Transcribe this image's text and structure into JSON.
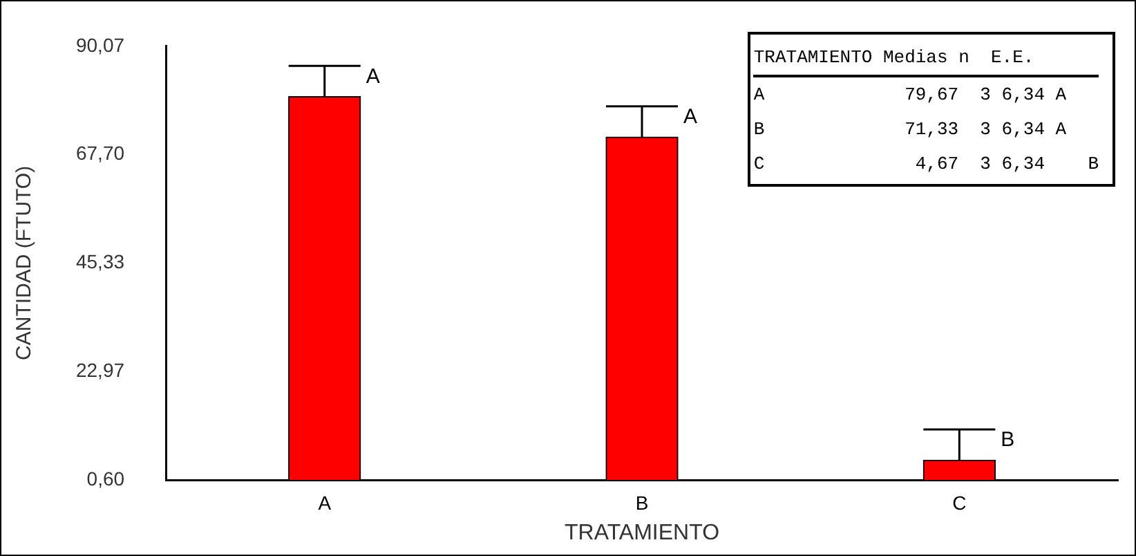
{
  "chart_data": {
    "type": "bar",
    "xlabel": "TRATAMIENTO",
    "ylabel": "CANTIDAD (FTUTO)",
    "categories": [
      "A",
      "B",
      "C"
    ],
    "values": [
      79.67,
      71.33,
      4.67
    ],
    "errors": [
      [
        79.67,
        86.01
      ],
      [
        71.33,
        77.67
      ],
      [
        4.67,
        11.01
      ]
    ],
    "color": "#ff0000",
    "ylim": [
      0.6,
      90.07
    ],
    "yticks": [
      {
        "value": 0.6,
        "label": "0,60"
      },
      {
        "value": 22.97,
        "label": "22,97"
      },
      {
        "value": 45.33,
        "label": "45,33"
      },
      {
        "value": 67.7,
        "label": "67,70"
      },
      {
        "value": 90.07,
        "label": "90,07"
      }
    ],
    "grid": false,
    "annotations": [
      {
        "text": "A",
        "x": "A",
        "y": 86.01
      },
      {
        "text": "A",
        "x": "B",
        "y": 77.67
      },
      {
        "text": "B",
        "x": "C",
        "y": 11.01
      },
      "TRATAMIENTO Medias n  E.E.",
      "A             79,67  3 6,34 A",
      "B             71,33  3 6,34 A",
      "C              4,67  3 6,34    B"
    ]
  }
}
